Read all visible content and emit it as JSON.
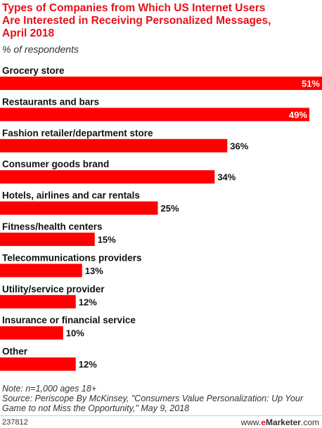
{
  "header": {
    "title_lines": [
      "Types of Companies from Which US Internet Users",
      "Are Interested in Receiving Personalized Messages,",
      "April 2018"
    ],
    "subtitle": "% of respondents"
  },
  "chart_data": {
    "type": "bar",
    "orientation": "horizontal",
    "title": "Types of Companies from Which US Internet Users Are Interested in Receiving Personalized Messages, April 2018",
    "subtitle": "% of respondents",
    "categories": [
      "Grocery store",
      "Restaurants and bars",
      "Fashion retailer/department store",
      "Consumer goods brand",
      "Hotels, airlines and car rentals",
      "Fitness/health centers",
      "Telecommunications providers",
      "Utility/service provider",
      "Insurance or financial service",
      "Other"
    ],
    "values": [
      51,
      49,
      36,
      34,
      25,
      15,
      13,
      12,
      10,
      12
    ],
    "value_labels": [
      "51%",
      "49%",
      "36%",
      "34%",
      "25%",
      "15%",
      "13%",
      "12%",
      "10%",
      "12%"
    ],
    "xlim": [
      0,
      51
    ],
    "grid": false,
    "bar_color": "#ff0000"
  },
  "notes": {
    "note": "Note: n=1,000 ages 18+",
    "source_lines": [
      "Source: Periscope By McKinsey, \"Consumers Value Personalization: Up Your",
      "Game to not Miss the Opportunity,\" May 9, 2018"
    ]
  },
  "footer": {
    "chart_id": "237812",
    "brand_prefix": "www.",
    "brand_e": "e",
    "brand_main": "Marketer",
    "brand_suffix": ".com"
  },
  "colors": {
    "accent": "#e8101a",
    "bar": "#ff0000",
    "text": "#333333"
  }
}
